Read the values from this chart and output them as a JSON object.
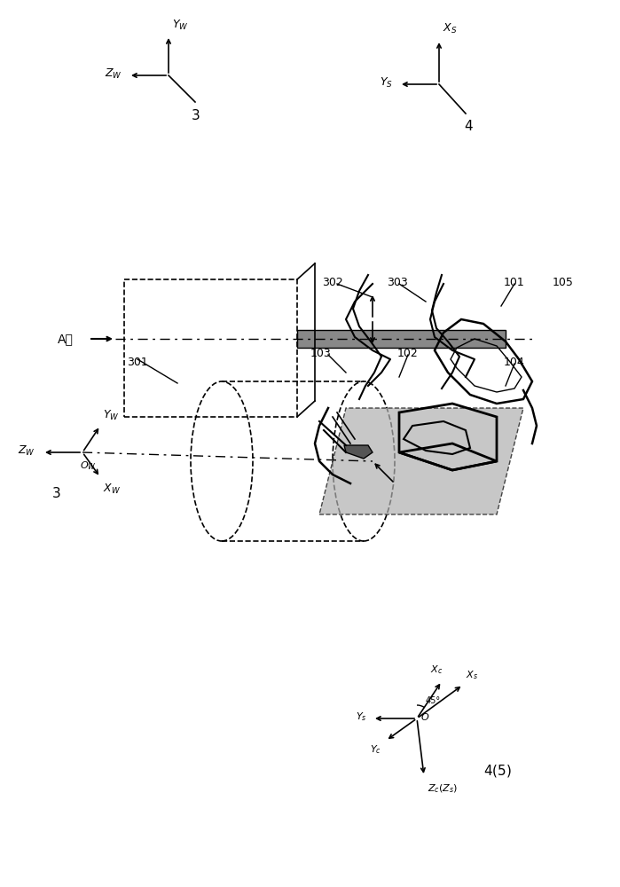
{
  "bg_color": "#ffffff",
  "line_color": "#000000",
  "gray_fill": "#aaaaaa",
  "light_gray": "#cccccc",
  "dashed_color": "#555555",
  "fig_width": 6.99,
  "fig_height": 10.0
}
